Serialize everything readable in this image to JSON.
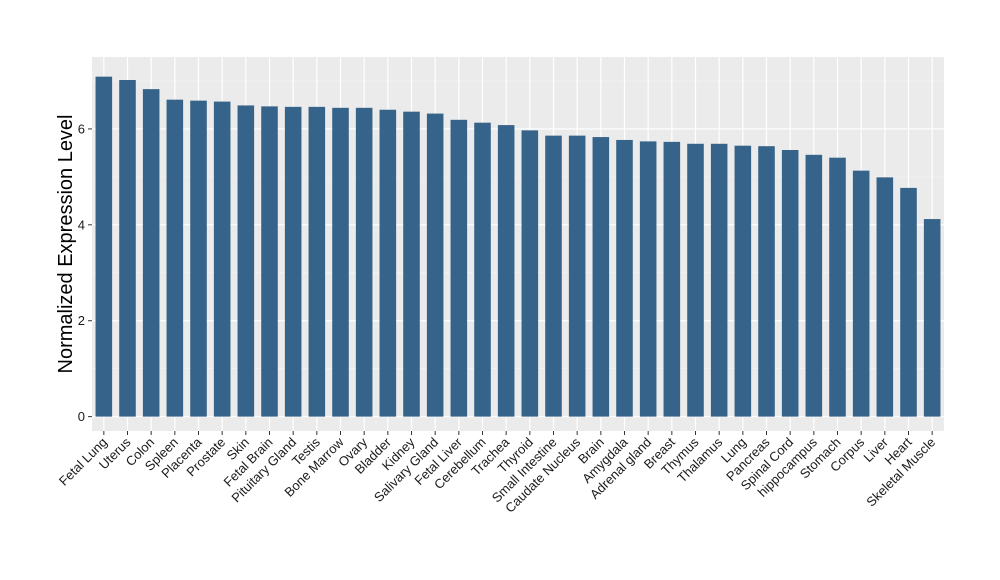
{
  "chart_data": {
    "type": "bar",
    "title": "",
    "xlabel": "",
    "ylabel": "Normalized Expression Level",
    "ylim": [
      -0.3,
      7.5
    ],
    "yticks": [
      0,
      2,
      4,
      6
    ],
    "grid": true,
    "bar_color": "#35638a",
    "panel_color": "#ebebeb",
    "categories": [
      "Fetal Lung",
      "Uterus",
      "Colon",
      "Spleen",
      "Placenta",
      "Prostate",
      "Skin",
      "Fetal Brain",
      "Pituitary Gland",
      "Testis",
      "Bone Marrow",
      "Ovary",
      "Bladder",
      "Kidney",
      "Salivary Gland",
      "Fetal Liver",
      "Cerebellum",
      "Trachea",
      "Thyroid",
      "Small Intestine",
      "Caudate Nucleus",
      "Brain",
      "Amygdala",
      "Adrenal gland",
      "Breast",
      "Thymus",
      "Thalamus",
      "Lung",
      "Pancreas",
      "Spinal Cord",
      "hippocampus",
      "Stomach",
      "Corpus",
      "Liver",
      "Heart",
      "Skeletal Muscle"
    ],
    "values": [
      7.09,
      7.02,
      6.83,
      6.61,
      6.59,
      6.57,
      6.49,
      6.47,
      6.46,
      6.46,
      6.44,
      6.44,
      6.4,
      6.36,
      6.32,
      6.19,
      6.13,
      6.08,
      5.97,
      5.86,
      5.86,
      5.83,
      5.77,
      5.74,
      5.73,
      5.69,
      5.69,
      5.65,
      5.64,
      5.56,
      5.46,
      5.4,
      5.13,
      4.99,
      4.77,
      4.12
    ]
  }
}
